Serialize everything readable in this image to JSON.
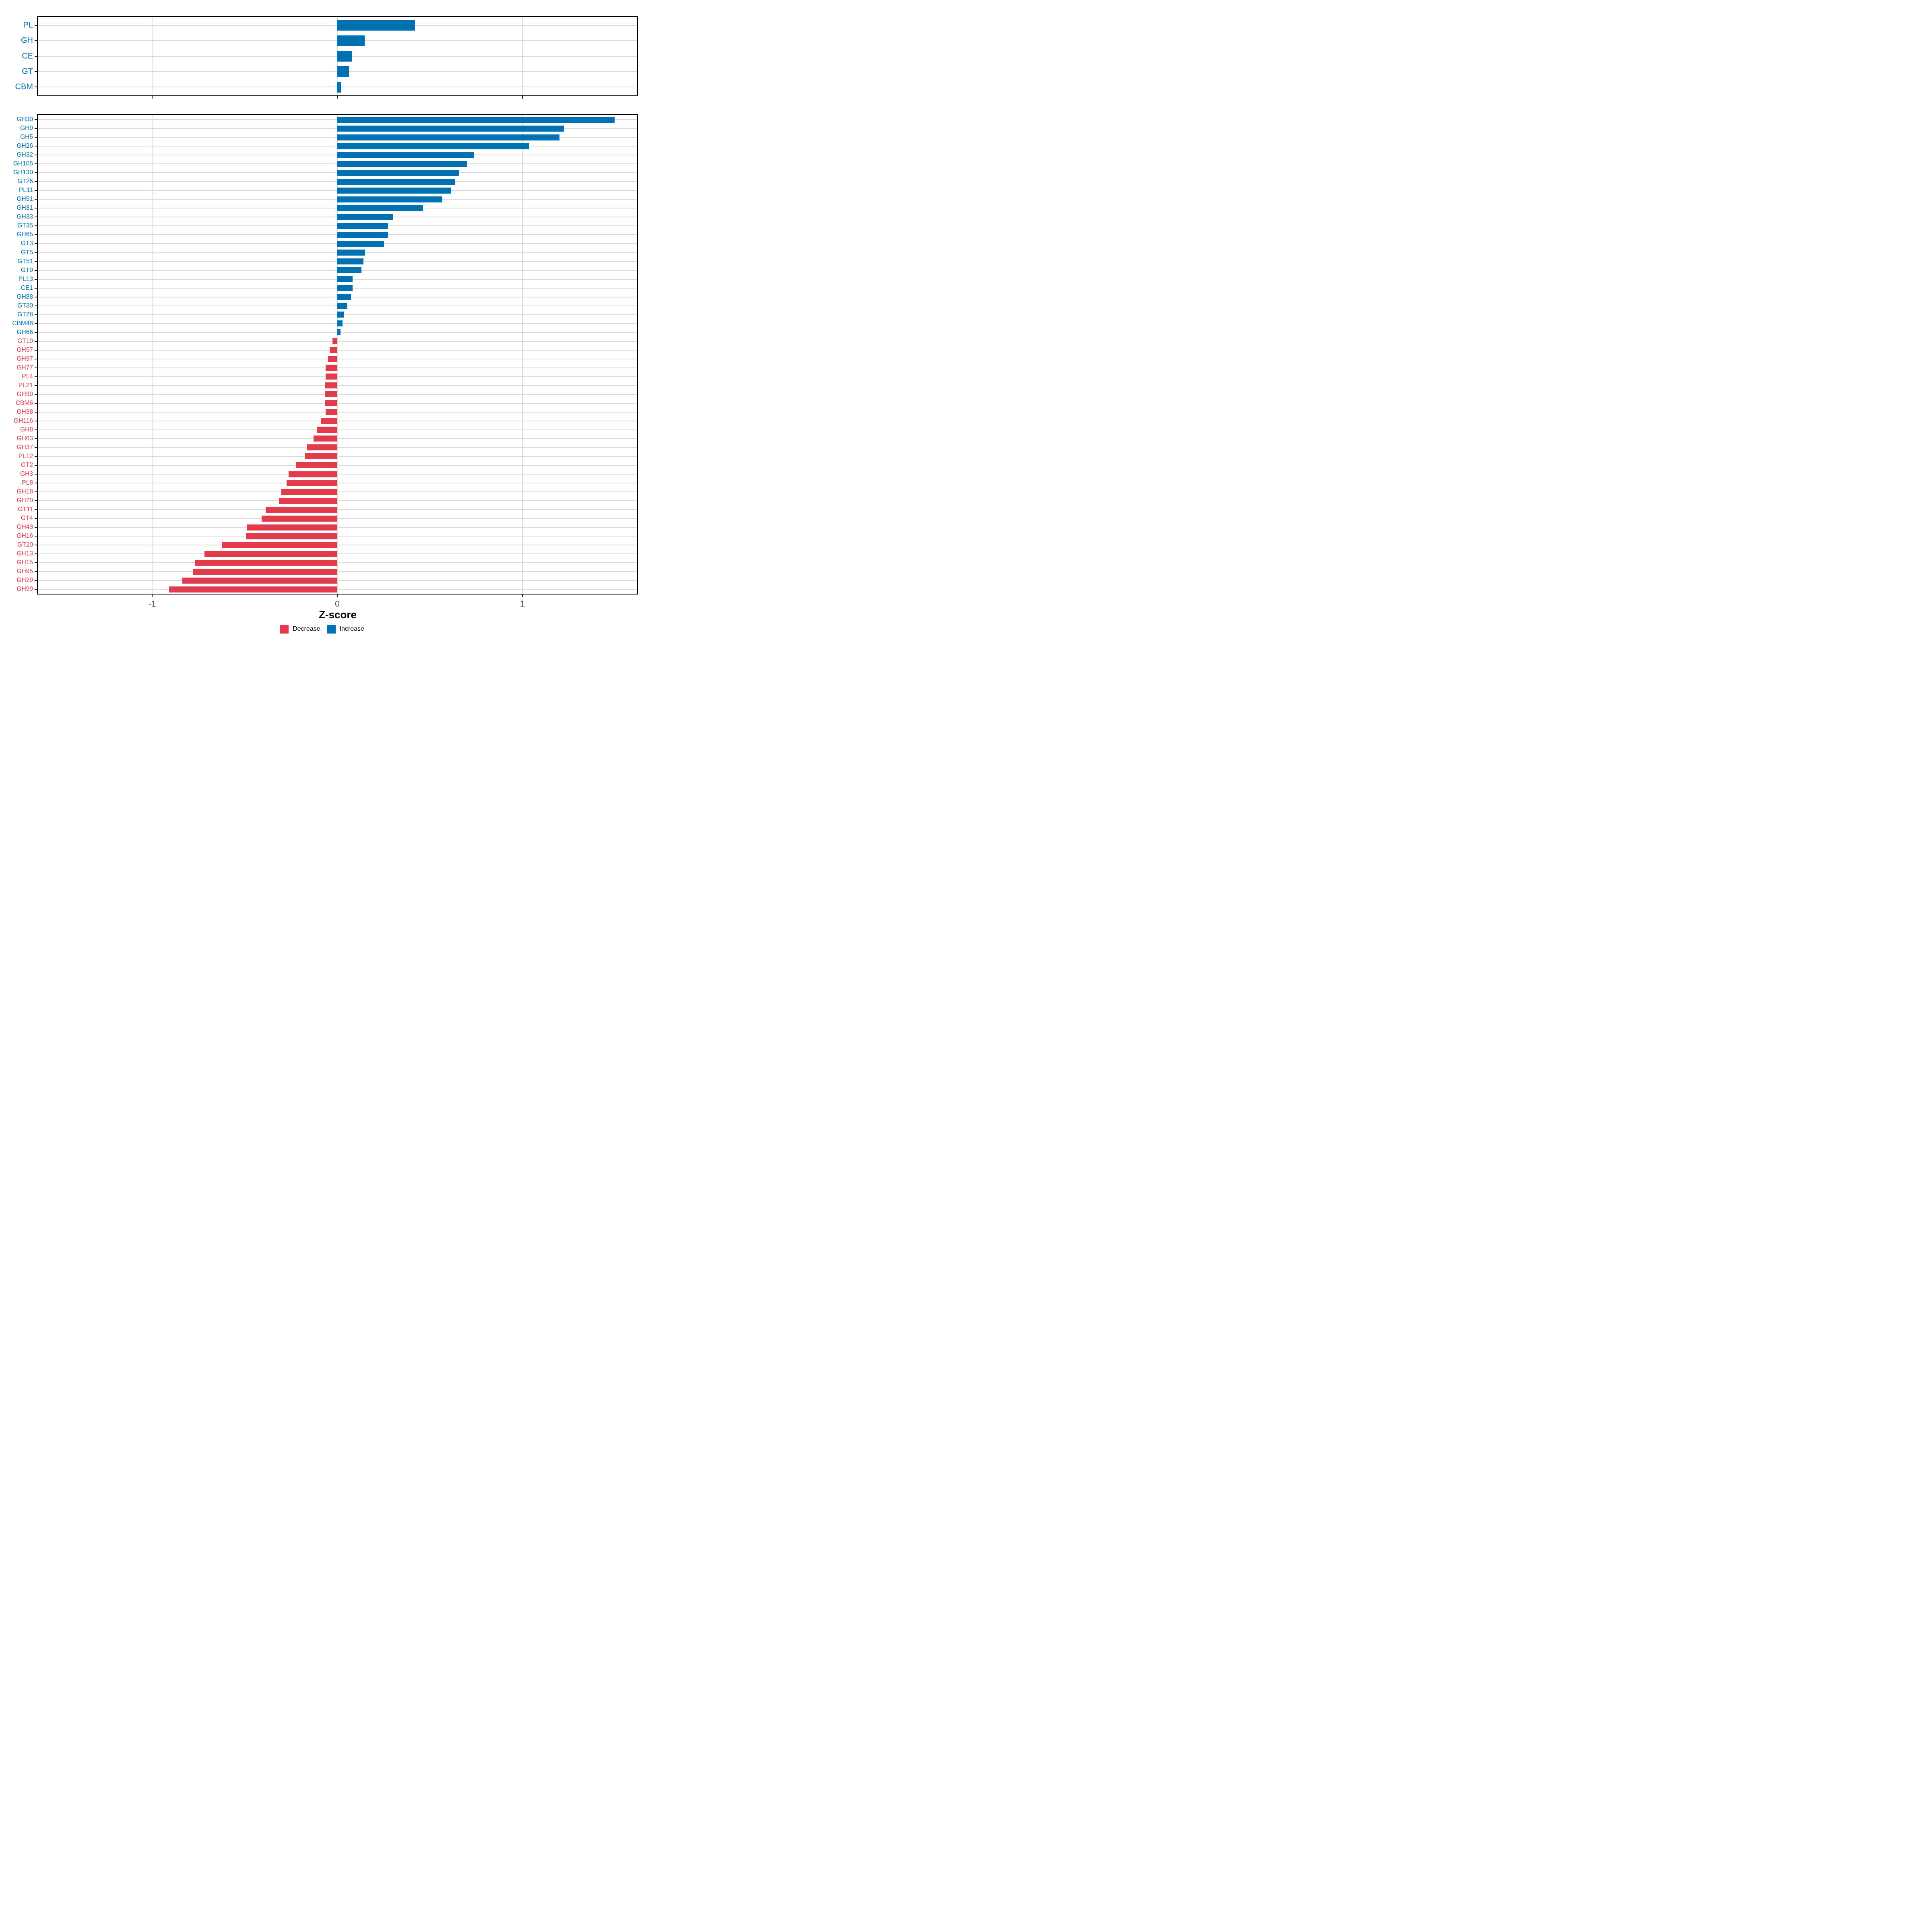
{
  "figure": {
    "colors": {
      "increase": "#0072B2",
      "decrease": "#E23B4C",
      "grid": "#DBDBDB",
      "panel_border": "#000000",
      "tick_label": "#4D4D4D",
      "background": "#FFFFFF"
    },
    "axis": {
      "title": "Z-score",
      "tick_values": [
        -1,
        0,
        1
      ],
      "tick_labels": [
        "-1",
        "0",
        "1"
      ],
      "xlim": [
        -1.62,
        1.62
      ],
      "grid": "major-only"
    },
    "legend": {
      "position": "bottom-center",
      "items": [
        {
          "label": "Decrease",
          "color": "#E23B4C"
        },
        {
          "label": "Increase",
          "color": "#0072B2"
        }
      ]
    }
  },
  "chart_data": [
    {
      "type": "bar",
      "orientation": "horizontal",
      "panel": "enzyme-classes-overview",
      "xlabel": "Z-score",
      "xlim": [
        -1.62,
        1.62
      ],
      "xticks": [
        -1,
        0,
        1
      ],
      "categories": [
        "PL",
        "GH",
        "CE",
        "GT",
        "CBM"
      ],
      "values": [
        0.42,
        0.147,
        0.079,
        0.062,
        0.02
      ],
      "directions": [
        "increase",
        "increase",
        "increase",
        "increase",
        "increase"
      ]
    },
    {
      "type": "bar",
      "orientation": "horizontal",
      "panel": "enzyme-families",
      "xlabel": "Z-score",
      "xlim": [
        -1.62,
        1.62
      ],
      "xticks": [
        -1,
        0,
        1
      ],
      "categories": [
        "GH30",
        "GH9",
        "GH5",
        "GH26",
        "GH32",
        "GH105",
        "GH130",
        "GT26",
        "PL11",
        "GH51",
        "GH31",
        "GH33",
        "GT35",
        "GH65",
        "GT3",
        "GT5",
        "GT51",
        "GT9",
        "PL13",
        "CE1",
        "GH88",
        "GT30",
        "GT28",
        "CBM48",
        "GH66",
        "GT19",
        "GH57",
        "GH97",
        "GH77",
        "PL4",
        "PL21",
        "GH39",
        "CBM6",
        "GH38",
        "GH116",
        "GH8",
        "GH63",
        "GH37",
        "PL12",
        "GT2",
        "GH3",
        "PL8",
        "GH18",
        "GH20",
        "GT11",
        "GT4",
        "GH43",
        "GH16",
        "GT20",
        "GH13",
        "GH15",
        "GH95",
        "GH29",
        "GH99"
      ],
      "values": [
        1.497,
        1.223,
        1.199,
        1.036,
        0.738,
        0.703,
        0.656,
        0.634,
        0.614,
        0.568,
        0.462,
        0.301,
        0.273,
        0.273,
        0.252,
        0.151,
        0.141,
        0.13,
        0.083,
        0.082,
        0.074,
        0.054,
        0.038,
        0.028,
        0.017,
        -0.026,
        -0.041,
        -0.05,
        -0.064,
        -0.064,
        -0.065,
        -0.065,
        -0.065,
        -0.064,
        -0.086,
        -0.111,
        -0.128,
        -0.166,
        -0.176,
        -0.224,
        -0.262,
        -0.273,
        -0.303,
        -0.316,
        -0.387,
        -0.409,
        -0.488,
        -0.494,
        -0.625,
        -0.718,
        -0.768,
        -0.781,
        -0.836,
        -0.908
      ],
      "directions_rule": "value >= 0 -> increase (blue), value < 0 -> decrease (red)"
    }
  ]
}
